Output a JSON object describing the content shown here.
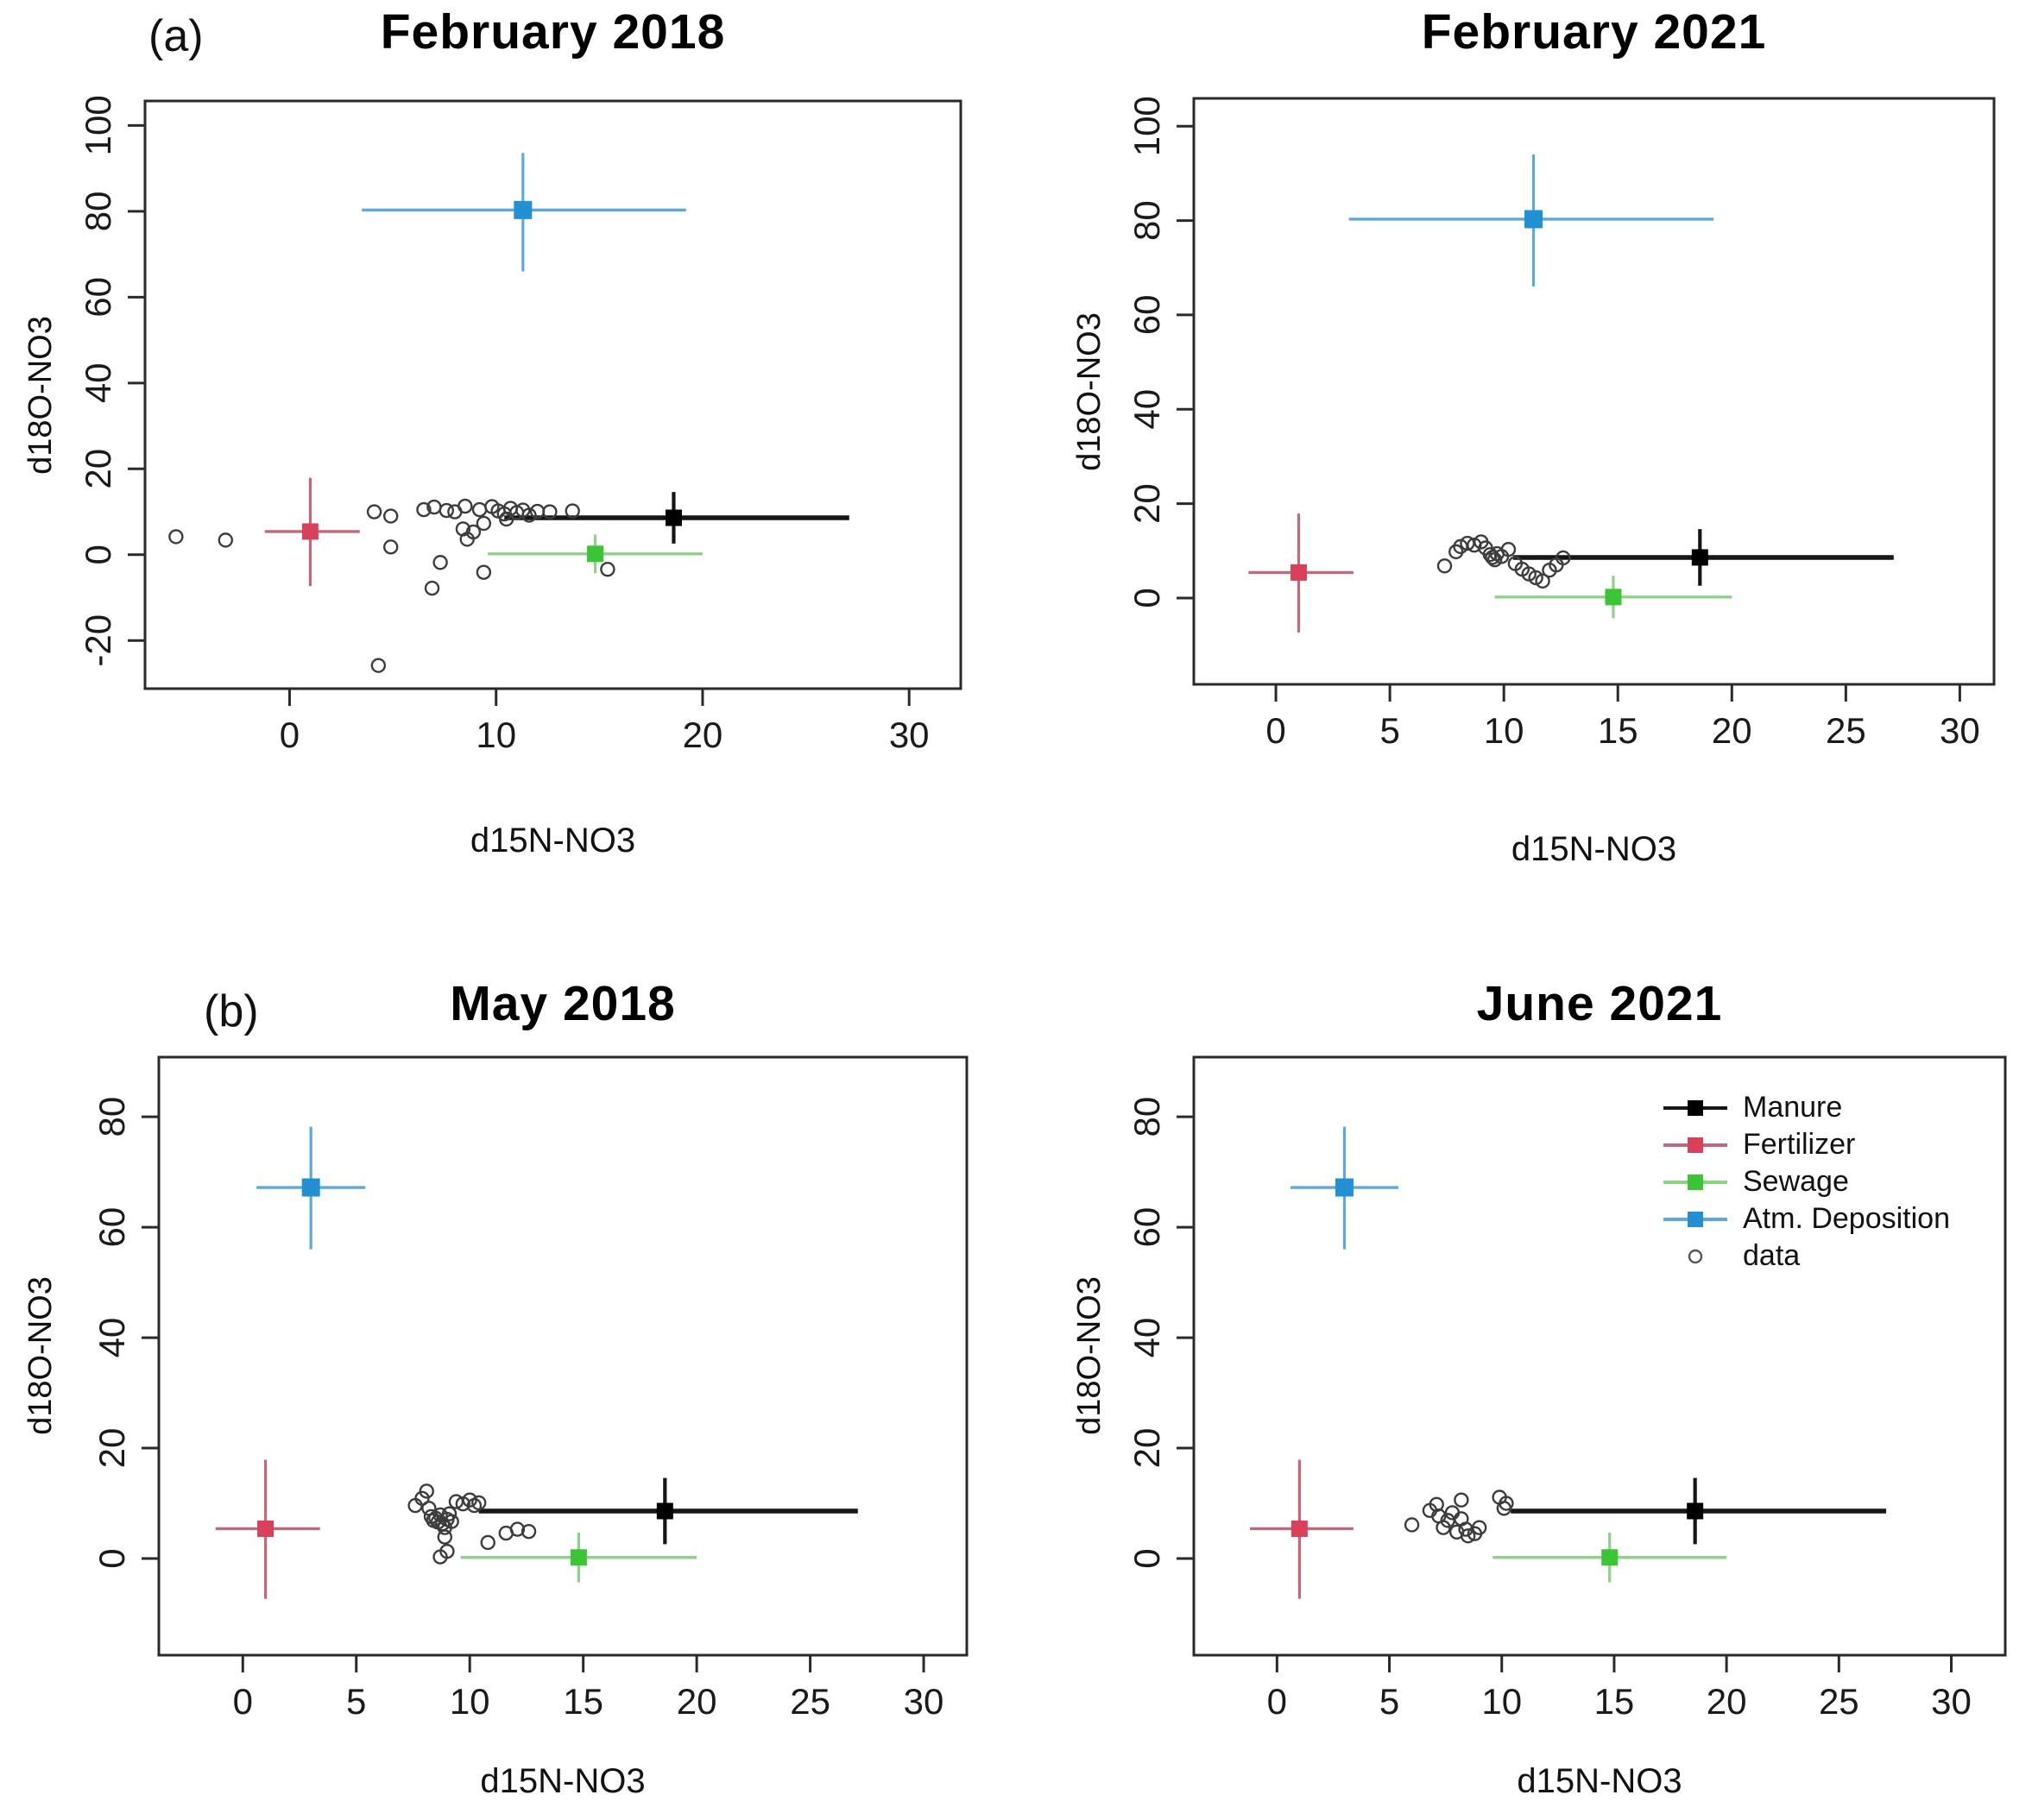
{
  "figure": {
    "panel_a_label": "(a)",
    "panel_b_label": "(b)",
    "xlabel": "d15N-NO3",
    "ylabel": "d18O-NO3"
  },
  "colors": {
    "Manure": {
      "square": "#000000",
      "line": "#161616"
    },
    "Fertilizer": {
      "square": "#d8415c",
      "line": "#c0697a"
    },
    "Sewage": {
      "square": "#3cc437",
      "line": "#8fd187"
    },
    "Atm. Deposition": {
      "square": "#2490d4",
      "line": "#5ea9da"
    },
    "data_circle": "#3d3d3d",
    "axis": "#2a2a2a",
    "tick_text": "#1a1a1a"
  },
  "legend": {
    "position": "top-right of June 2021 panel",
    "items": [
      {
        "label": "Manure",
        "glyph": "square-line",
        "color": "#000000",
        "line": "#161616"
      },
      {
        "label": "Fertilizer",
        "glyph": "square-line",
        "color": "#d8415c",
        "line": "#c0697a"
      },
      {
        "label": "Sewage",
        "glyph": "square-line",
        "color": "#3cc437",
        "line": "#8fd187"
      },
      {
        "label": "Atm. Deposition",
        "glyph": "square-line",
        "color": "#2490d4",
        "line": "#5ea9da"
      },
      {
        "label": "data",
        "glyph": "open-circle",
        "color": "#555555",
        "line": "none"
      }
    ]
  },
  "chart_data": [
    {
      "type": "scatter",
      "title": "February 2018",
      "xlabel": "d15N-NO3",
      "ylabel": "d18O-NO3",
      "xlim": [
        -7.0,
        32.5
      ],
      "ylim": [
        -31.2,
        105.7
      ],
      "xticks": [
        0,
        10,
        20,
        30
      ],
      "yticks": [
        -20,
        0,
        20,
        40,
        60,
        80,
        100
      ],
      "grid": false,
      "sources": [
        {
          "name": "Manure",
          "x": 18.6,
          "y": 8.6,
          "xerr": [
            10.4,
            27.1
          ],
          "yerr": [
            2.6,
            14.6
          ]
        },
        {
          "name": "Fertilizer",
          "x": 1.0,
          "y": 5.4,
          "xerr": [
            -1.2,
            3.4
          ],
          "yerr": [
            -7.3,
            17.9
          ]
        },
        {
          "name": "Sewage",
          "x": 14.8,
          "y": 0.2,
          "xerr": [
            9.6,
            20.0
          ],
          "yerr": [
            -4.3,
            4.7
          ]
        },
        {
          "name": "Atm. Deposition",
          "x": 11.3,
          "y": 80.3,
          "xerr": [
            3.5,
            19.2
          ],
          "yerr": [
            66.0,
            93.6
          ]
        }
      ],
      "data_points": [
        [
          -5.5,
          4.2
        ],
        [
          -3.1,
          3.4
        ],
        [
          4.1,
          10.0
        ],
        [
          4.9,
          9.0
        ],
        [
          4.9,
          1.8
        ],
        [
          6.5,
          10.5
        ],
        [
          7.0,
          11.1
        ],
        [
          7.6,
          10.3
        ],
        [
          8.0,
          10.0
        ],
        [
          8.4,
          6.0
        ],
        [
          8.5,
          11.3
        ],
        [
          8.6,
          3.6
        ],
        [
          8.9,
          5.3
        ],
        [
          9.2,
          10.5
        ],
        [
          9.4,
          7.3
        ],
        [
          9.8,
          11.2
        ],
        [
          10.1,
          10.2
        ],
        [
          10.4,
          9.5
        ],
        [
          10.5,
          8.3
        ],
        [
          10.7,
          10.8
        ],
        [
          11.0,
          9.8
        ],
        [
          11.3,
          10.4
        ],
        [
          11.6,
          9.2
        ],
        [
          12.0,
          10.1
        ],
        [
          12.6,
          10.0
        ],
        [
          13.7,
          10.2
        ],
        [
          9.4,
          -4.1
        ],
        [
          7.3,
          -1.8
        ],
        [
          6.9,
          -7.8
        ],
        [
          15.4,
          -3.4
        ],
        [
          4.3,
          -25.8
        ]
      ]
    },
    {
      "type": "scatter",
      "title": "February 2021",
      "xlabel": "d15N-NO3",
      "ylabel": "d18O-NO3",
      "xlim": [
        -3.6,
        31.5
      ],
      "ylim": [
        -18.3,
        105.9
      ],
      "xticks": [
        0,
        5,
        10,
        15,
        20,
        25,
        30
      ],
      "yticks": [
        0,
        20,
        40,
        60,
        80,
        100
      ],
      "grid": false,
      "sources": [
        {
          "name": "Manure",
          "x": 18.6,
          "y": 8.6,
          "xerr": [
            10.4,
            27.1
          ],
          "yerr": [
            2.6,
            14.6
          ]
        },
        {
          "name": "Fertilizer",
          "x": 1.0,
          "y": 5.4,
          "xerr": [
            -1.2,
            3.4
          ],
          "yerr": [
            -7.3,
            17.9
          ]
        },
        {
          "name": "Sewage",
          "x": 14.8,
          "y": 0.2,
          "xerr": [
            9.6,
            20.0
          ],
          "yerr": [
            -4.3,
            4.7
          ]
        },
        {
          "name": "Atm. Deposition",
          "x": 11.3,
          "y": 80.3,
          "xerr": [
            3.2,
            19.2
          ],
          "yerr": [
            66.0,
            94.0
          ]
        }
      ],
      "data_points": [
        [
          7.4,
          6.8
        ],
        [
          7.9,
          9.8
        ],
        [
          8.1,
          10.9
        ],
        [
          8.4,
          11.6
        ],
        [
          8.7,
          11.2
        ],
        [
          9.0,
          11.9
        ],
        [
          9.2,
          10.6
        ],
        [
          9.4,
          9.2
        ],
        [
          9.5,
          8.6
        ],
        [
          9.6,
          8.1
        ],
        [
          9.7,
          9.4
        ],
        [
          9.9,
          8.8
        ],
        [
          10.2,
          10.3
        ],
        [
          10.5,
          7.3
        ],
        [
          10.8,
          6.1
        ],
        [
          11.1,
          5.1
        ],
        [
          11.4,
          4.3
        ],
        [
          11.7,
          3.6
        ],
        [
          12.0,
          5.9
        ],
        [
          12.3,
          7.0
        ],
        [
          12.6,
          8.5
        ]
      ]
    },
    {
      "type": "scatter",
      "title": "May 2018",
      "xlabel": "d15N-NO3",
      "ylabel": "d18O-NO3",
      "xlim": [
        -3.7,
        31.9
      ],
      "ylim": [
        -17.5,
        90.8
      ],
      "xticks": [
        0,
        5,
        10,
        15,
        20,
        25,
        30
      ],
      "yticks": [
        0,
        20,
        40,
        60,
        80
      ],
      "grid": false,
      "sources": [
        {
          "name": "Manure",
          "x": 18.6,
          "y": 8.6,
          "xerr": [
            10.4,
            27.1
          ],
          "yerr": [
            2.6,
            14.6
          ]
        },
        {
          "name": "Fertilizer",
          "x": 1.0,
          "y": 5.4,
          "xerr": [
            -1.2,
            3.4
          ],
          "yerr": [
            -7.3,
            17.9
          ]
        },
        {
          "name": "Sewage",
          "x": 14.8,
          "y": 0.2,
          "xerr": [
            9.6,
            20.0
          ],
          "yerr": [
            -4.3,
            4.7
          ]
        },
        {
          "name": "Atm. Deposition",
          "x": 3.0,
          "y": 67.2,
          "xerr": [
            0.6,
            5.4
          ],
          "yerr": [
            56.0,
            78.2
          ]
        }
      ],
      "data_points": [
        [
          7.6,
          9.6
        ],
        [
          7.9,
          10.9
        ],
        [
          8.1,
          12.2
        ],
        [
          8.2,
          9.1
        ],
        [
          8.3,
          7.6
        ],
        [
          8.4,
          6.9
        ],
        [
          8.5,
          7.3
        ],
        [
          8.6,
          6.6
        ],
        [
          8.7,
          7.9
        ],
        [
          8.8,
          6.3
        ],
        [
          8.9,
          5.6
        ],
        [
          9.0,
          7.1
        ],
        [
          9.1,
          8.1
        ],
        [
          9.2,
          6.7
        ],
        [
          9.4,
          10.3
        ],
        [
          9.7,
          9.9
        ],
        [
          10.0,
          10.6
        ],
        [
          10.2,
          9.6
        ],
        [
          10.4,
          10.1
        ],
        [
          8.9,
          3.9
        ],
        [
          9.0,
          1.3
        ],
        [
          8.7,
          0.3
        ],
        [
          10.8,
          2.9
        ],
        [
          11.6,
          4.6
        ],
        [
          12.1,
          5.3
        ],
        [
          12.6,
          4.9
        ]
      ]
    },
    {
      "type": "scatter",
      "title": "June 2021",
      "xlabel": "d15N-NO3",
      "ylabel": "d18O-NO3",
      "xlim": [
        -3.7,
        32.4
      ],
      "ylim": [
        -17.5,
        90.8
      ],
      "xticks": [
        0,
        5,
        10,
        15,
        20,
        25,
        30
      ],
      "yticks": [
        0,
        20,
        40,
        60,
        80
      ],
      "grid": false,
      "sources": [
        {
          "name": "Manure",
          "x": 18.6,
          "y": 8.6,
          "xerr": [
            10.4,
            27.1
          ],
          "yerr": [
            2.6,
            14.6
          ]
        },
        {
          "name": "Fertilizer",
          "x": 1.0,
          "y": 5.4,
          "xerr": [
            -1.2,
            3.4
          ],
          "yerr": [
            -7.3,
            17.9
          ]
        },
        {
          "name": "Sewage",
          "x": 14.8,
          "y": 0.2,
          "xerr": [
            9.6,
            20.0
          ],
          "yerr": [
            -4.3,
            4.7
          ]
        },
        {
          "name": "Atm. Deposition",
          "x": 3.0,
          "y": 67.2,
          "xerr": [
            0.6,
            5.4
          ],
          "yerr": [
            56.0,
            78.2
          ]
        }
      ],
      "data_points": [
        [
          6.0,
          6.1
        ],
        [
          6.8,
          8.7
        ],
        [
          7.1,
          9.8
        ],
        [
          7.2,
          7.7
        ],
        [
          7.4,
          5.6
        ],
        [
          7.6,
          6.9
        ],
        [
          7.8,
          8.3
        ],
        [
          8.0,
          4.8
        ],
        [
          8.2,
          10.6
        ],
        [
          8.2,
          7.2
        ],
        [
          8.4,
          5.3
        ],
        [
          8.5,
          4.1
        ],
        [
          8.8,
          4.5
        ],
        [
          9.0,
          5.6
        ],
        [
          9.9,
          11.1
        ],
        [
          10.1,
          9.1
        ],
        [
          10.2,
          10.0
        ]
      ]
    }
  ]
}
